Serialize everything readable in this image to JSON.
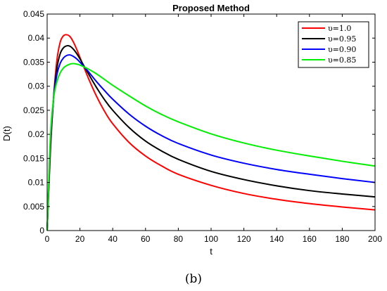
{
  "chart_data": {
    "type": "line",
    "title": "Proposed Method",
    "xlabel": "t",
    "ylabel": "D(t)",
    "xlim": [
      0,
      200
    ],
    "ylim": [
      0,
      0.045
    ],
    "xticks": [
      0,
      20,
      40,
      60,
      80,
      100,
      120,
      140,
      160,
      180,
      200
    ],
    "yticks": [
      0,
      0.005,
      0.01,
      0.015,
      0.02,
      0.025,
      0.03,
      0.035,
      0.04,
      0.045
    ],
    "ytick_labels": [
      "0",
      "0.005",
      "0.01",
      "0.015",
      "0.02",
      "0.025",
      "0.03",
      "0.035",
      "0.04",
      "0.045"
    ],
    "grid": false,
    "legend_position": "top-right",
    "caption": "(b)",
    "series": [
      {
        "name": "υ=1.0",
        "color": "#ff0000",
        "x": [
          0,
          2,
          4,
          6,
          8,
          10,
          12,
          14,
          16,
          18,
          20,
          25,
          30,
          35,
          40,
          50,
          60,
          70,
          80,
          100,
          120,
          140,
          160,
          180,
          200
        ],
        "y": [
          0,
          0.0165,
          0.028,
          0.0355,
          0.0392,
          0.0405,
          0.0407,
          0.0403,
          0.0392,
          0.0377,
          0.036,
          0.0318,
          0.028,
          0.0248,
          0.0222,
          0.0183,
          0.0155,
          0.0134,
          0.0117,
          0.0094,
          0.0077,
          0.0065,
          0.0056,
          0.0049,
          0.0043
        ]
      },
      {
        "name": "υ=0.95",
        "color": "#000000",
        "x": [
          0,
          2,
          4,
          6,
          8,
          10,
          12,
          14,
          16,
          18,
          20,
          25,
          30,
          35,
          40,
          50,
          60,
          70,
          80,
          100,
          120,
          140,
          160,
          180,
          200
        ],
        "y": [
          0,
          0.0175,
          0.0278,
          0.0338,
          0.0368,
          0.038,
          0.0384,
          0.0383,
          0.0377,
          0.0368,
          0.0357,
          0.0327,
          0.0298,
          0.0272,
          0.025,
          0.0214,
          0.0186,
          0.0165,
          0.0148,
          0.0123,
          0.0106,
          0.0093,
          0.0083,
          0.0076,
          0.007
        ]
      },
      {
        "name": "υ=0.90",
        "color": "#0000ff",
        "x": [
          0,
          2,
          4,
          6,
          8,
          10,
          12,
          14,
          16,
          18,
          20,
          25,
          30,
          35,
          40,
          50,
          60,
          70,
          80,
          100,
          120,
          140,
          160,
          180,
          200
        ],
        "y": [
          0,
          0.0185,
          0.0278,
          0.0325,
          0.0348,
          0.0359,
          0.0364,
          0.0365,
          0.0362,
          0.0357,
          0.035,
          0.0331,
          0.031,
          0.0291,
          0.0273,
          0.0242,
          0.0217,
          0.0197,
          0.0181,
          0.0157,
          0.014,
          0.0127,
          0.0117,
          0.0108,
          0.01
        ]
      },
      {
        "name": "υ=0.85",
        "color": "#00ee00",
        "x": [
          0,
          2,
          4,
          6,
          8,
          10,
          12,
          14,
          16,
          18,
          20,
          25,
          30,
          35,
          40,
          50,
          60,
          70,
          80,
          100,
          120,
          140,
          160,
          180,
          200
        ],
        "y": [
          0,
          0.0195,
          0.0276,
          0.031,
          0.0328,
          0.0338,
          0.0343,
          0.0346,
          0.0347,
          0.0346,
          0.0344,
          0.0336,
          0.0326,
          0.0314,
          0.0302,
          0.028,
          0.0259,
          0.0241,
          0.0226,
          0.0201,
          0.0182,
          0.0167,
          0.0155,
          0.0144,
          0.0134
        ]
      }
    ]
  }
}
